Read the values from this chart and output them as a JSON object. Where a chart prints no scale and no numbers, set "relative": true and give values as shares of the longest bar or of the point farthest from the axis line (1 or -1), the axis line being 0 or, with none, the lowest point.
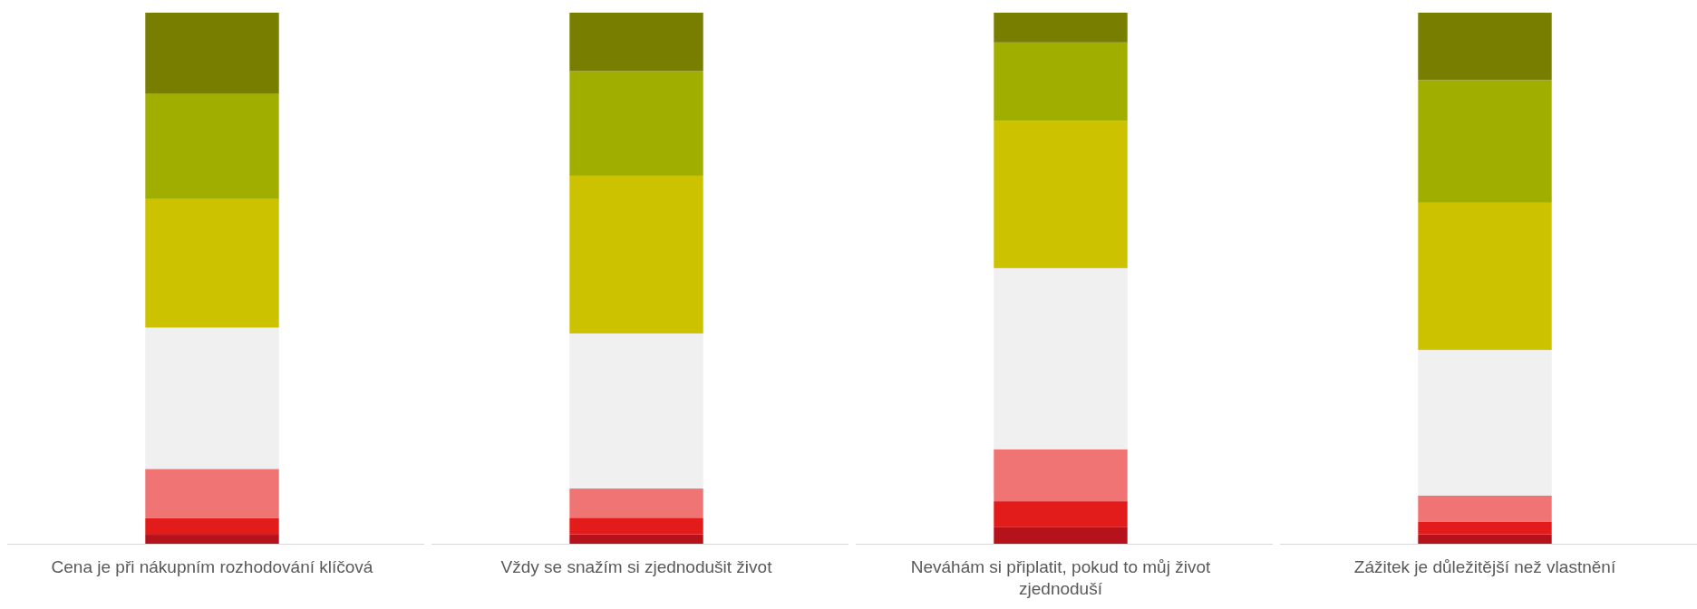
{
  "chart_data": [
    {
      "type": "bar",
      "stacked": true,
      "relative": true,
      "categories": [
        "Cena je při nákupním rozhodování klíčová"
      ],
      "series": [
        {
          "color": "#b5121b",
          "values": [
            0.017
          ]
        },
        {
          "color": "#e11c1a",
          "values": [
            0.031
          ]
        },
        {
          "color": "#f07474",
          "values": [
            0.093
          ]
        },
        {
          "color": "#f0f0f0",
          "values": [
            0.266
          ]
        },
        {
          "color": "#ccc200",
          "values": [
            0.242
          ]
        },
        {
          "color": "#a0ae00",
          "values": [
            0.198
          ]
        },
        {
          "color": "#787f00",
          "values": [
            0.153
          ]
        }
      ]
    },
    {
      "type": "bar",
      "stacked": true,
      "relative": true,
      "categories": [
        "Vždy se snažím si zjednodušit život"
      ],
      "series": [
        {
          "color": "#b5121b",
          "values": [
            0.018
          ]
        },
        {
          "color": "#e11c1a",
          "values": [
            0.031
          ]
        },
        {
          "color": "#f07474",
          "values": [
            0.055
          ]
        },
        {
          "color": "#f0f0f0",
          "values": [
            0.292
          ]
        },
        {
          "color": "#ccc200",
          "values": [
            0.297
          ]
        },
        {
          "color": "#a0ae00",
          "values": [
            0.197
          ]
        },
        {
          "color": "#787f00",
          "values": [
            0.11
          ]
        }
      ]
    },
    {
      "type": "bar",
      "stacked": true,
      "relative": true,
      "categories": [
        "Neváhám si připlatit, pokud to můj život zjednoduší"
      ],
      "series": [
        {
          "color": "#b5121b",
          "values": [
            0.032
          ]
        },
        {
          "color": "#e11c1a",
          "values": [
            0.048
          ]
        },
        {
          "color": "#f07474",
          "values": [
            0.098
          ]
        },
        {
          "color": "#f0f0f0",
          "values": [
            0.341
          ]
        },
        {
          "color": "#ccc200",
          "values": [
            0.277
          ]
        },
        {
          "color": "#a0ae00",
          "values": [
            0.148
          ]
        },
        {
          "color": "#787f00",
          "values": [
            0.056
          ]
        }
      ]
    },
    {
      "type": "bar",
      "stacked": true,
      "relative": true,
      "categories": [
        "Zážitek je důležitější než vlastnění"
      ],
      "series": [
        {
          "color": "#b5121b",
          "values": [
            0.018
          ]
        },
        {
          "color": "#e11c1a",
          "values": [
            0.023
          ]
        },
        {
          "color": "#f07474",
          "values": [
            0.05
          ]
        },
        {
          "color": "#f0f0f0",
          "values": [
            0.274
          ]
        },
        {
          "color": "#ccc200",
          "values": [
            0.277
          ]
        },
        {
          "color": "#a0ae00",
          "values": [
            0.231
          ]
        },
        {
          "color": "#787f00",
          "values": [
            0.127
          ]
        }
      ]
    }
  ]
}
